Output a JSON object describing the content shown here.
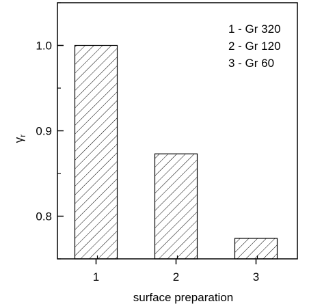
{
  "chart_data": {
    "type": "bar",
    "title": "",
    "xlabel": "surface preparation",
    "ylabel": "γr",
    "ylabel_main": "γ",
    "ylabel_sub": "r",
    "categories": [
      "1",
      "2",
      "3"
    ],
    "values": [
      1.0,
      0.873,
      0.774
    ],
    "ylim": [
      0.75,
      1.05
    ],
    "yticks": [
      0.8,
      0.9,
      1.0
    ],
    "ytick_labels": [
      "0.8",
      "0.9",
      "1.0"
    ],
    "bar_fill": "diagonal-hatch",
    "grid": false,
    "legend": {
      "placement": "top-right",
      "entries": [
        "1 - Gr 320",
        "2 - Gr 120",
        "3 - Gr 60"
      ]
    }
  },
  "colors": {
    "axis": "#000000",
    "bar_stroke": "#000000",
    "hatch": "#000000",
    "background": "#ffffff"
  }
}
